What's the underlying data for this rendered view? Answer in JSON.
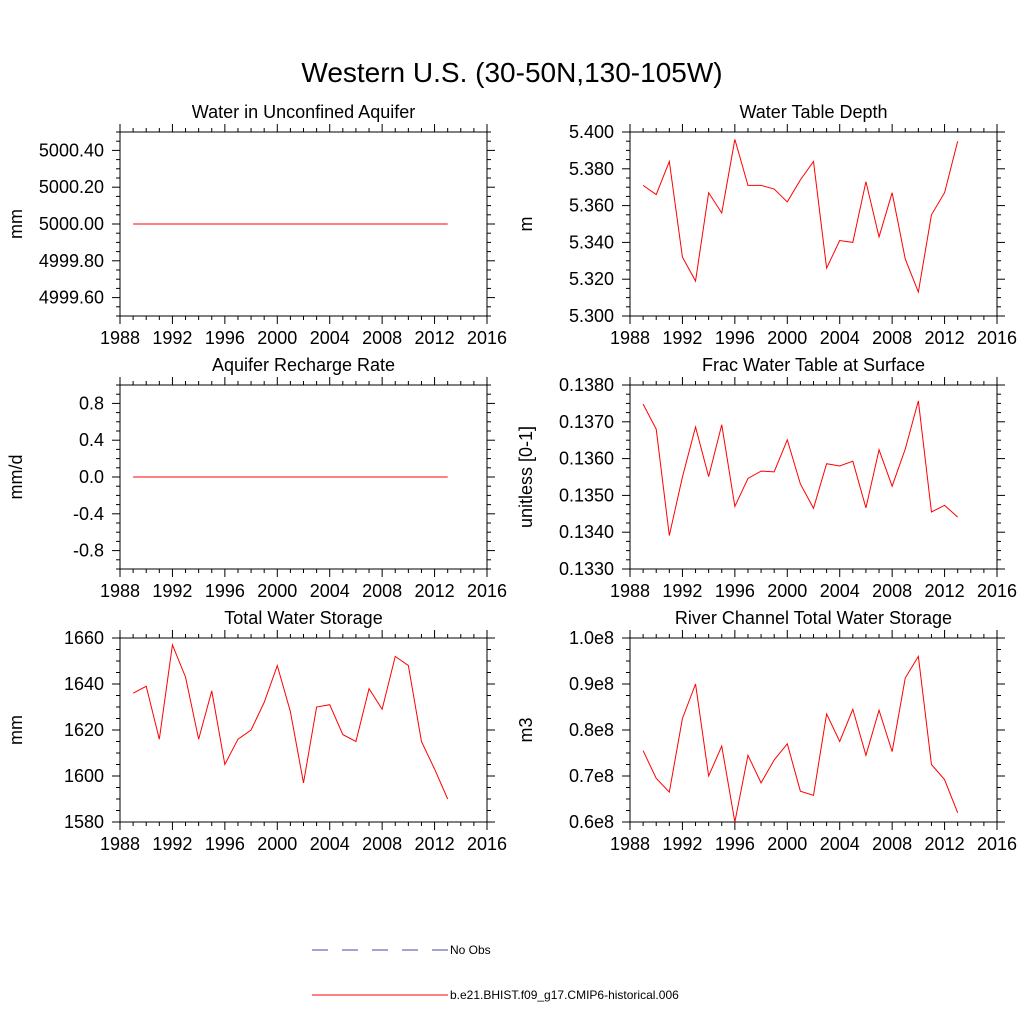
{
  "figure_title": "Western U.S. (30-50N,130-105W)",
  "colors": {
    "model": "#ff0000",
    "obs": "#4a4aa8",
    "axis": "#000000"
  },
  "legend": {
    "items": [
      {
        "label": "No Obs",
        "style": "dashed",
        "color": "#4a4aa8"
      },
      {
        "label": "b.e21.BHIST.f09_g17.CMIP6-historical.006",
        "style": "solid",
        "color": "#ff0000"
      }
    ]
  },
  "chart_data": [
    {
      "type": "line",
      "title": "Water in Unconfined Aquifer",
      "ylabel": "mm",
      "xlim": [
        1988,
        2016
      ],
      "xticks": [
        1988,
        1992,
        1996,
        2000,
        2004,
        2008,
        2012,
        2016
      ],
      "ylim": [
        4999.5,
        5000.5
      ],
      "yticks": [
        4999.6,
        4999.8,
        5000.0,
        5000.2,
        5000.4
      ],
      "ytick_labels": [
        "4999.60",
        "4999.80",
        "5000.00",
        "5000.20",
        "5000.40"
      ],
      "series": [
        {
          "x": [
            1989,
            2013
          ],
          "y": [
            5000.0,
            5000.0
          ]
        }
      ]
    },
    {
      "type": "line",
      "title": "Water Table Depth",
      "ylabel": "m",
      "xlim": [
        1988,
        2016
      ],
      "xticks": [
        1988,
        1992,
        1996,
        2000,
        2004,
        2008,
        2012,
        2016
      ],
      "ylim": [
        5.3,
        5.4
      ],
      "yticks": [
        5.3,
        5.32,
        5.34,
        5.36,
        5.38,
        5.4
      ],
      "ytick_labels": [
        "5.300",
        "5.320",
        "5.340",
        "5.360",
        "5.380",
        "5.400"
      ],
      "series": [
        {
          "x": [
            1989,
            1990,
            1991,
            1992,
            1993,
            1994,
            1995,
            1996,
            1997,
            1998,
            1999,
            2000,
            2001,
            2002,
            2003,
            2004,
            2005,
            2006,
            2007,
            2008,
            2009,
            2010,
            2011,
            2012,
            2013
          ],
          "y": [
            5.371,
            5.366,
            5.384,
            5.332,
            5.319,
            5.367,
            5.356,
            5.396,
            5.371,
            5.371,
            5.369,
            5.362,
            5.374,
            5.384,
            5.326,
            5.341,
            5.34,
            5.373,
            5.343,
            5.367,
            5.331,
            5.313,
            5.355,
            5.367,
            5.395
          ]
        }
      ]
    },
    {
      "type": "line",
      "title": "Aquifer Recharge Rate",
      "ylabel": "mm/d",
      "xlim": [
        1988,
        2016
      ],
      "xticks": [
        1988,
        1992,
        1996,
        2000,
        2004,
        2008,
        2012,
        2016
      ],
      "ylim": [
        -1.0,
        1.0
      ],
      "yticks": [
        -0.8,
        -0.4,
        0.0,
        0.4,
        0.8
      ],
      "ytick_labels": [
        "-0.8",
        "-0.4",
        "0.0",
        "0.4",
        "0.8"
      ],
      "series": [
        {
          "x": [
            1989,
            2013
          ],
          "y": [
            0.0,
            0.0
          ]
        }
      ]
    },
    {
      "type": "line",
      "title": "Frac Water Table at Surface",
      "ylabel": "unitless [0-1]",
      "xlim": [
        1988,
        2016
      ],
      "xticks": [
        1988,
        1992,
        1996,
        2000,
        2004,
        2008,
        2012,
        2016
      ],
      "ylim": [
        0.133,
        0.138
      ],
      "yticks": [
        0.133,
        0.134,
        0.135,
        0.136,
        0.137,
        0.138
      ],
      "ytick_labels": [
        "0.1330",
        "0.1340",
        "0.1350",
        "0.1360",
        "0.1370",
        "0.1380"
      ],
      "series": [
        {
          "x": [
            1989,
            1990,
            1991,
            1992,
            1993,
            1994,
            1995,
            1996,
            1997,
            1998,
            1999,
            2000,
            2001,
            2002,
            2003,
            2004,
            2005,
            2006,
            2007,
            2008,
            2009,
            2010,
            2011,
            2012,
            2013
          ],
          "y": [
            0.13748,
            0.1368,
            0.13391,
            0.1355,
            0.13686,
            0.13551,
            0.13692,
            0.1347,
            0.13546,
            0.13566,
            0.13564,
            0.13651,
            0.13531,
            0.13465,
            0.13586,
            0.1358,
            0.13593,
            0.13466,
            0.13624,
            0.13525,
            0.13626,
            0.13757,
            0.13455,
            0.13473,
            0.13441
          ]
        }
      ]
    },
    {
      "type": "line",
      "title": "Total Water Storage",
      "ylabel": "mm",
      "xlim": [
        1988,
        2016
      ],
      "xticks": [
        1988,
        1992,
        1996,
        2000,
        2004,
        2008,
        2012,
        2016
      ],
      "ylim": [
        1580,
        1660
      ],
      "yticks": [
        1580,
        1600,
        1620,
        1640,
        1660
      ],
      "ytick_labels": [
        "1580",
        "1600",
        "1620",
        "1640",
        "1660"
      ],
      "series": [
        {
          "x": [
            1989,
            1990,
            1991,
            1992,
            1993,
            1994,
            1995,
            1996,
            1997,
            1998,
            1999,
            2000,
            2001,
            2002,
            2003,
            2004,
            2005,
            2006,
            2007,
            2008,
            2009,
            2010,
            2011,
            2012,
            2013
          ],
          "y": [
            1636,
            1639,
            1616,
            1657,
            1643,
            1616,
            1637,
            1605,
            1616,
            1620,
            1632,
            1648,
            1628,
            1597,
            1630,
            1631,
            1618,
            1615,
            1638,
            1629,
            1652,
            1648,
            1615,
            1603,
            1590
          ]
        }
      ]
    },
    {
      "type": "line",
      "title": "River Channel Total Water Storage",
      "ylabel": "m3",
      "xlim": [
        1988,
        2016
      ],
      "xticks": [
        1988,
        1992,
        1996,
        2000,
        2004,
        2008,
        2012,
        2016
      ],
      "ylim": [
        60000000,
        100000000
      ],
      "yticks": [
        60000000,
        70000000,
        80000000,
        90000000,
        100000000
      ],
      "ytick_labels": [
        "0.6e8",
        "0.7e8",
        "0.8e8",
        "0.9e8",
        "1.0e8"
      ],
      "series": [
        {
          "x": [
            1989,
            1990,
            1991,
            1992,
            1993,
            1994,
            1995,
            1996,
            1997,
            1998,
            1999,
            2000,
            2001,
            2002,
            2003,
            2004,
            2005,
            2006,
            2007,
            2008,
            2009,
            2010,
            2011,
            2012,
            2013
          ],
          "y": [
            75500000,
            69500000,
            66500000,
            82500000,
            90000000,
            70000000,
            76500000,
            60000000,
            74500000,
            68500000,
            73500000,
            77000000,
            66700000,
            65800000,
            83500000,
            77500000,
            84500000,
            74500000,
            84300000,
            75300000,
            91300000,
            96000000,
            72500000,
            69200000,
            62000000
          ]
        }
      ]
    }
  ]
}
